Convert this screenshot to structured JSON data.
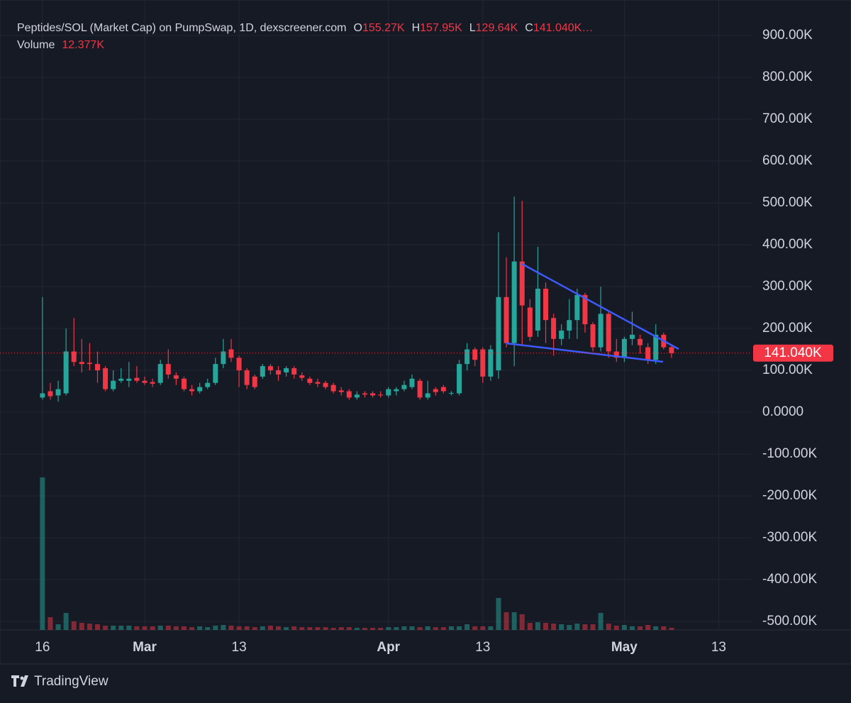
{
  "chart_data": {
    "type": "candlestick",
    "title": "Peptides/SOL (Market Cap) on PumpSwap, 1D, dexscreener.com",
    "legend": [
      {
        "key": "O",
        "label": "155.27K"
      },
      {
        "key": "H",
        "label": "157.95K"
      },
      {
        "key": "L",
        "label": "129.64K"
      },
      {
        "key": "C",
        "label": "141.040K…"
      }
    ],
    "volume_name": "Volume",
    "volume_label": "12.377K",
    "last_price_label": "141.040K",
    "up_color": "#26a69a",
    "down_color": "#f23645",
    "grid": true,
    "xlim": [
      -5.4,
      90.2
    ],
    "xticks": [
      {
        "value": 0,
        "label": "16"
      },
      {
        "value": 13,
        "label": "Mar"
      },
      {
        "value": 25,
        "label": "13"
      },
      {
        "value": 44,
        "label": "Apr"
      },
      {
        "value": 56,
        "label": "13"
      },
      {
        "value": 74,
        "label": "May"
      },
      {
        "value": 86,
        "label": "13"
      }
    ],
    "ylim": [
      -520300,
      947500
    ],
    "yticks": [
      {
        "value": 900000,
        "label": "900.00K"
      },
      {
        "value": 800000,
        "label": "800.00K"
      },
      {
        "value": 700000,
        "label": "700.00K"
      },
      {
        "value": 600000,
        "label": "600.00K"
      },
      {
        "value": 500000,
        "label": "500.00K"
      },
      {
        "value": 400000,
        "label": "400.00K"
      },
      {
        "value": 300000,
        "label": "300.00K"
      },
      {
        "value": 200000,
        "label": "200.00K"
      },
      {
        "value": 100000,
        "label": "100.00K"
      },
      {
        "value": 0,
        "label": "0.0000"
      },
      {
        "value": -100000,
        "label": "-100.00K"
      },
      {
        "value": -200000,
        "label": "-200.00K"
      },
      {
        "value": -300000,
        "label": "-300.00K"
      },
      {
        "value": -400000,
        "label": "-400.00K"
      },
      {
        "value": -500000,
        "label": "-500.00K"
      }
    ],
    "x": [
      0,
      1,
      2,
      3,
      4,
      5,
      6,
      7,
      8,
      9,
      10,
      11,
      12,
      13,
      14,
      15,
      16,
      17,
      18,
      19,
      20,
      21,
      22,
      23,
      24,
      25,
      26,
      27,
      28,
      29,
      30,
      31,
      32,
      33,
      34,
      35,
      36,
      37,
      38,
      39,
      40,
      41,
      42,
      43,
      44,
      45,
      46,
      47,
      48,
      49,
      50,
      51,
      52,
      53,
      54,
      55,
      56,
      57,
      58,
      59,
      60,
      61,
      62,
      63,
      64,
      65,
      66,
      67,
      68,
      69,
      70,
      71,
      72,
      73,
      74,
      75,
      76,
      77,
      78,
      79,
      80
    ],
    "open": [
      35000,
      50000,
      40000,
      45000,
      145000,
      120000,
      118000,
      115000,
      105000,
      55000,
      75000,
      75000,
      82000,
      75000,
      72000,
      70000,
      115000,
      88000,
      80000,
      55000,
      50000,
      60000,
      70000,
      115000,
      150000,
      130000,
      100000,
      85000,
      85000,
      110000,
      100000,
      95000,
      105000,
      88000,
      80000,
      72000,
      70000,
      65000,
      52000,
      50000,
      35000,
      45000,
      45000,
      42000,
      40000,
      50000,
      55000,
      60000,
      75000,
      35000,
      55000,
      60000,
      45000,
      45000,
      115000,
      150000,
      150000,
      85000,
      100000,
      275000,
      165000,
      360000,
      250000,
      195000,
      295000,
      225000,
      175000,
      195000,
      220000,
      280000,
      210000,
      155000,
      235000,
      145000,
      130000,
      175000,
      175000,
      155000,
      125000,
      185000,
      155270
    ],
    "high": [
      275000,
      70000,
      75000,
      200000,
      225000,
      175000,
      165000,
      145000,
      110000,
      100000,
      105000,
      120000,
      110000,
      85000,
      80000,
      125000,
      150000,
      95000,
      85000,
      65000,
      70000,
      80000,
      130000,
      175000,
      175000,
      135000,
      105000,
      90000,
      115000,
      115000,
      110000,
      110000,
      110000,
      95000,
      85000,
      80000,
      75000,
      70000,
      60000,
      55000,
      50000,
      50000,
      50000,
      50000,
      60000,
      60000,
      75000,
      90000,
      80000,
      75000,
      60000,
      65000,
      50000,
      125000,
      165000,
      155000,
      155000,
      160000,
      430000,
      370000,
      515000,
      505000,
      270000,
      395000,
      310000,
      235000,
      210000,
      270000,
      295000,
      285000,
      215000,
      300000,
      240000,
      175000,
      180000,
      240000,
      185000,
      165000,
      210000,
      190000,
      157950
    ],
    "low": [
      30000,
      30000,
      25000,
      40000,
      110000,
      95000,
      100000,
      70000,
      50000,
      50000,
      70000,
      60000,
      70000,
      65000,
      60000,
      65000,
      80000,
      65000,
      50000,
      40000,
      45000,
      55000,
      65000,
      105000,
      120000,
      60000,
      55000,
      55000,
      80000,
      90000,
      75000,
      85000,
      80000,
      75000,
      65000,
      60000,
      55000,
      45000,
      40000,
      30000,
      30000,
      35000,
      35000,
      35000,
      35000,
      40000,
      50000,
      55000,
      30000,
      30000,
      40000,
      45000,
      40000,
      40000,
      100000,
      110000,
      70000,
      75000,
      80000,
      155000,
      110000,
      160000,
      170000,
      180000,
      165000,
      135000,
      160000,
      175000,
      175000,
      190000,
      145000,
      145000,
      130000,
      120000,
      120000,
      160000,
      140000,
      115000,
      115000,
      150000,
      129640
    ],
    "close": [
      45000,
      38000,
      55000,
      145000,
      120000,
      115000,
      115000,
      100000,
      55000,
      75000,
      80000,
      80000,
      75000,
      70000,
      68000,
      115000,
      90000,
      80000,
      55000,
      50000,
      60000,
      70000,
      115000,
      145000,
      130000,
      100000,
      65000,
      60000,
      110000,
      100000,
      90000,
      105000,
      90000,
      82000,
      70000,
      68000,
      60000,
      50000,
      48000,
      35000,
      42000,
      42000,
      40000,
      40000,
      55000,
      55000,
      65000,
      80000,
      35000,
      45000,
      48000,
      50000,
      46000,
      115000,
      150000,
      125000,
      85000,
      150000,
      275000,
      165000,
      360000,
      255000,
      180000,
      295000,
      220000,
      175000,
      195000,
      220000,
      280000,
      210000,
      155000,
      235000,
      145000,
      130000,
      175000,
      185000,
      160000,
      125000,
      185000,
      155000,
      141040
    ],
    "volume": [
      887000,
      74000,
      33000,
      99000,
      50000,
      41000,
      37000,
      33000,
      25000,
      25000,
      25000,
      25000,
      21000,
      21000,
      21000,
      25000,
      25000,
      21000,
      21000,
      16000,
      21000,
      16000,
      25000,
      29000,
      25000,
      21000,
      21000,
      16000,
      21000,
      25000,
      21000,
      16000,
      21000,
      16000,
      16000,
      16000,
      16000,
      12000,
      16000,
      16000,
      12000,
      12000,
      12000,
      12000,
      16000,
      16000,
      21000,
      21000,
      16000,
      21000,
      16000,
      16000,
      21000,
      21000,
      33000,
      21000,
      21000,
      21000,
      186000,
      103000,
      103000,
      91000,
      41000,
      45000,
      41000,
      37000,
      33000,
      29000,
      37000,
      33000,
      33000,
      99000,
      37000,
      25000,
      29000,
      21000,
      21000,
      29000,
      21000,
      21000,
      12377
    ]
  },
  "footer": {
    "brand": "TradingView"
  }
}
